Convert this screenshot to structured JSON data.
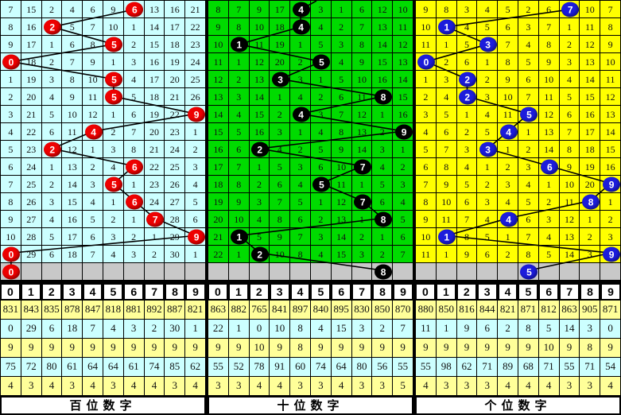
{
  "chart_data": {
    "type": "table",
    "title": "lottery digit trend chart",
    "column_digits": [
      "0",
      "1",
      "2",
      "3",
      "4",
      "5",
      "6",
      "7",
      "8",
      "9"
    ],
    "line_color": "#000000",
    "pending_row_bg": "#C8C8C8",
    "stats_row_bgs": [
      "#FFFF99",
      "#CCFFFF",
      "#FFFF99",
      "#CCFFFF",
      "#FFFF99"
    ],
    "panels": [
      {
        "id": "hundreds",
        "footer": "百位数字",
        "cell_bg": "#CCFFFF",
        "ball_color": "#EE0000",
        "top_stub": false,
        "rows": [
          {
            "cells": [
              "7",
              "15",
              "2",
              "4",
              "6",
              "9",
              "6",
              "13",
              "16",
              "21"
            ],
            "ball": 6
          },
          {
            "cells": [
              "8",
              "16",
              "2",
              "5",
              "7",
              "10",
              "1",
              "14",
              "17",
              "22"
            ],
            "ball": 2
          },
          {
            "cells": [
              "9",
              "17",
              "1",
              "6",
              "8",
              "5",
              "2",
              "15",
              "18",
              "23"
            ],
            "ball": 5
          },
          {
            "cells": [
              "0",
              "18",
              "2",
              "7",
              "9",
              "1",
              "3",
              "16",
              "19",
              "24"
            ],
            "ball": 0
          },
          {
            "cells": [
              "1",
              "19",
              "3",
              "8",
              "10",
              "5",
              "4",
              "17",
              "20",
              "25"
            ],
            "ball": 5
          },
          {
            "cells": [
              "2",
              "20",
              "4",
              "9",
              "11",
              "5",
              "5",
              "18",
              "21",
              "26"
            ],
            "ball": 5
          },
          {
            "cells": [
              "3",
              "21",
              "5",
              "10",
              "12",
              "1",
              "6",
              "19",
              "22",
              "9"
            ],
            "ball": 9
          },
          {
            "cells": [
              "4",
              "22",
              "6",
              "11",
              "4",
              "2",
              "7",
              "20",
              "23",
              "1"
            ],
            "ball": 4
          },
          {
            "cells": [
              "5",
              "23",
              "2",
              "12",
              "1",
              "3",
              "8",
              "21",
              "24",
              "2"
            ],
            "ball": 2
          },
          {
            "cells": [
              "6",
              "24",
              "1",
              "13",
              "2",
              "4",
              "6",
              "22",
              "25",
              "3"
            ],
            "ball": 6
          },
          {
            "cells": [
              "7",
              "25",
              "2",
              "14",
              "3",
              "5",
              "1",
              "23",
              "26",
              "4"
            ],
            "ball": 5
          },
          {
            "cells": [
              "8",
              "26",
              "3",
              "15",
              "4",
              "1",
              "6",
              "24",
              "27",
              "5"
            ],
            "ball": 6
          },
          {
            "cells": [
              "9",
              "27",
              "4",
              "16",
              "5",
              "2",
              "1",
              "7",
              "28",
              "6"
            ],
            "ball": 7
          },
          {
            "cells": [
              "10",
              "28",
              "5",
              "17",
              "6",
              "3",
              "2",
              "1",
              "29",
              "9"
            ],
            "ball": 9
          },
          {
            "cells": [
              "0",
              "29",
              "6",
              "18",
              "7",
              "4",
              "3",
              "2",
              "30",
              "1"
            ],
            "ball": 0
          }
        ],
        "pending_ball": 0,
        "stats": [
          [
            "831",
            "843",
            "835",
            "878",
            "847",
            "818",
            "881",
            "892",
            "887",
            "821"
          ],
          [
            "0",
            "29",
            "6",
            "18",
            "7",
            "4",
            "3",
            "2",
            "30",
            "1"
          ],
          [
            "9",
            "9",
            "9",
            "9",
            "9",
            "9",
            "9",
            "9",
            "9",
            "9"
          ],
          [
            "75",
            "72",
            "80",
            "61",
            "64",
            "64",
            "61",
            "74",
            "85",
            "62"
          ],
          [
            "4",
            "3",
            "4",
            "3",
            "4",
            "3",
            "4",
            "4",
            "3",
            "4"
          ]
        ]
      },
      {
        "id": "tens",
        "footer": "十位数字",
        "cell_bg": "#00DB00",
        "ball_color": "#000000",
        "top_stub": true,
        "rows": [
          {
            "cells": [
              "8",
              "7",
              "9",
              "17",
              "4",
              "3",
              "1",
              "6",
              "12",
              "10"
            ],
            "ball": 4
          },
          {
            "cells": [
              "9",
              "8",
              "10",
              "18",
              "4",
              "4",
              "2",
              "7",
              "13",
              "11"
            ],
            "ball": 4
          },
          {
            "cells": [
              "10",
              "1",
              "11",
              "19",
              "1",
              "5",
              "3",
              "8",
              "14",
              "12"
            ],
            "ball": 1
          },
          {
            "cells": [
              "11",
              "1",
              "12",
              "20",
              "2",
              "5",
              "4",
              "9",
              "15",
              "13"
            ],
            "ball": 5
          },
          {
            "cells": [
              "12",
              "2",
              "13",
              "3",
              "3",
              "1",
              "5",
              "10",
              "16",
              "14"
            ],
            "ball": 3
          },
          {
            "cells": [
              "13",
              "3",
              "14",
              "1",
              "4",
              "2",
              "6",
              "11",
              "8",
              "15"
            ],
            "ball": 8
          },
          {
            "cells": [
              "14",
              "4",
              "15",
              "2",
              "4",
              "3",
              "7",
              "12",
              "1",
              "16"
            ],
            "ball": 4
          },
          {
            "cells": [
              "15",
              "5",
              "16",
              "3",
              "1",
              "4",
              "8",
              "13",
              "2",
              "9"
            ],
            "ball": 9
          },
          {
            "cells": [
              "16",
              "6",
              "2",
              "4",
              "2",
              "5",
              "9",
              "14",
              "3",
              "1"
            ],
            "ball": 2
          },
          {
            "cells": [
              "17",
              "7",
              "1",
              "5",
              "3",
              "6",
              "10",
              "7",
              "4",
              "2"
            ],
            "ball": 7
          },
          {
            "cells": [
              "18",
              "8",
              "2",
              "6",
              "4",
              "5",
              "11",
              "1",
              "5",
              "3"
            ],
            "ball": 5
          },
          {
            "cells": [
              "19",
              "9",
              "3",
              "7",
              "5",
              "1",
              "12",
              "7",
              "6",
              "4"
            ],
            "ball": 7
          },
          {
            "cells": [
              "20",
              "10",
              "4",
              "8",
              "6",
              "2",
              "13",
              "1",
              "8",
              "5"
            ],
            "ball": 8
          },
          {
            "cells": [
              "21",
              "1",
              "5",
              "9",
              "7",
              "3",
              "14",
              "2",
              "1",
              "6"
            ],
            "ball": 1
          },
          {
            "cells": [
              "22",
              "1",
              "2",
              "10",
              "8",
              "4",
              "15",
              "3",
              "2",
              "7"
            ],
            "ball": 2
          }
        ],
        "pending_ball": 8,
        "stats": [
          [
            "863",
            "882",
            "765",
            "841",
            "897",
            "840",
            "895",
            "830",
            "850",
            "870"
          ],
          [
            "22",
            "1",
            "0",
            "10",
            "8",
            "4",
            "15",
            "3",
            "2",
            "7"
          ],
          [
            "9",
            "9",
            "10",
            "9",
            "8",
            "9",
            "9",
            "9",
            "9",
            "9"
          ],
          [
            "55",
            "52",
            "78",
            "91",
            "60",
            "74",
            "64",
            "80",
            "56",
            "55"
          ],
          [
            "3",
            "3",
            "4",
            "4",
            "3",
            "3",
            "4",
            "3",
            "3",
            "5"
          ]
        ]
      },
      {
        "id": "units",
        "footer": "个位数字",
        "cell_bg": "#FFFF00",
        "ball_color": "#1C1CDC",
        "top_stub": false,
        "rows": [
          {
            "cells": [
              "9",
              "8",
              "3",
              "4",
              "5",
              "2",
              "6",
              "7",
              "10",
              "7"
            ],
            "ball": 7
          },
          {
            "cells": [
              "10",
              "1",
              "4",
              "5",
              "6",
              "3",
              "7",
              "1",
              "11",
              "8"
            ],
            "ball": 1
          },
          {
            "cells": [
              "11",
              "1",
              "5",
              "3",
              "7",
              "4",
              "8",
              "2",
              "12",
              "9"
            ],
            "ball": 3
          },
          {
            "cells": [
              "0",
              "2",
              "6",
              "1",
              "8",
              "5",
              "9",
              "3",
              "13",
              "10"
            ],
            "ball": 0
          },
          {
            "cells": [
              "1",
              "3",
              "2",
              "2",
              "9",
              "6",
              "10",
              "4",
              "14",
              "11"
            ],
            "ball": 2
          },
          {
            "cells": [
              "2",
              "4",
              "2",
              "3",
              "10",
              "7",
              "11",
              "5",
              "15",
              "12"
            ],
            "ball": 2
          },
          {
            "cells": [
              "3",
              "5",
              "1",
              "4",
              "11",
              "5",
              "12",
              "6",
              "16",
              "13"
            ],
            "ball": 5
          },
          {
            "cells": [
              "4",
              "6",
              "2",
              "5",
              "4",
              "1",
              "13",
              "7",
              "17",
              "14"
            ],
            "ball": 4
          },
          {
            "cells": [
              "5",
              "7",
              "3",
              "3",
              "1",
              "2",
              "14",
              "8",
              "18",
              "15"
            ],
            "ball": 3
          },
          {
            "cells": [
              "6",
              "8",
              "4",
              "1",
              "2",
              "3",
              "6",
              "9",
              "19",
              "16"
            ],
            "ball": 6
          },
          {
            "cells": [
              "7",
              "9",
              "5",
              "2",
              "3",
              "4",
              "1",
              "10",
              "20",
              "9"
            ],
            "ball": 9
          },
          {
            "cells": [
              "8",
              "10",
              "6",
              "3",
              "4",
              "5",
              "2",
              "11",
              "8",
              "1"
            ],
            "ball": 8
          },
          {
            "cells": [
              "9",
              "11",
              "7",
              "4",
              "4",
              "6",
              "3",
              "12",
              "1",
              "2"
            ],
            "ball": 4
          },
          {
            "cells": [
              "10",
              "1",
              "8",
              "5",
              "1",
              "7",
              "4",
              "13",
              "2",
              "3"
            ],
            "ball": 1
          },
          {
            "cells": [
              "11",
              "1",
              "9",
              "6",
              "2",
              "8",
              "5",
              "14",
              "3",
              "9"
            ],
            "ball": 9
          }
        ],
        "pending_ball": 5,
        "stats": [
          [
            "880",
            "850",
            "816",
            "844",
            "821",
            "871",
            "812",
            "863",
            "905",
            "871"
          ],
          [
            "11",
            "1",
            "9",
            "6",
            "2",
            "8",
            "5",
            "14",
            "3",
            "0"
          ],
          [
            "9",
            "9",
            "9",
            "9",
            "9",
            "9",
            "10",
            "9",
            "8",
            "9"
          ],
          [
            "55",
            "98",
            "62",
            "71",
            "89",
            "68",
            "71",
            "55",
            "71",
            "54"
          ],
          [
            "4",
            "3",
            "3",
            "3",
            "4",
            "4",
            "4",
            "3",
            "3",
            "4"
          ]
        ]
      }
    ]
  }
}
